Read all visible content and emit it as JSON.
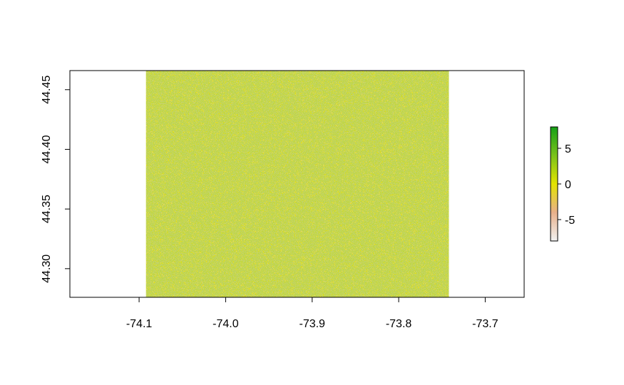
{
  "chart_data": {
    "type": "heatmap",
    "title": "",
    "xlabel": "",
    "ylabel": "",
    "xlim": [
      -74.18,
      -73.655
    ],
    "ylim": [
      44.276,
      44.466
    ],
    "x_ticks": [
      -74.1,
      -74.0,
      -73.9,
      -73.8,
      -73.7
    ],
    "x_tick_labels": [
      "-74.1",
      "-74.0",
      "-73.9",
      "-73.8",
      "-73.7"
    ],
    "y_ticks": [
      44.3,
      44.35,
      44.4,
      44.45
    ],
    "y_tick_labels": [
      "44.30",
      "44.35",
      "44.40",
      "44.45"
    ],
    "raster_extent": {
      "xmin": -74.092,
      "xmax": -73.742,
      "ymin": 44.276,
      "ymax": 44.466
    },
    "dominant_value": 0,
    "legend": {
      "placement": "right",
      "range": [
        -8,
        8
      ],
      "ticks": [
        5,
        0,
        -5
      ],
      "tick_labels": [
        "5",
        "0",
        "-5"
      ],
      "colors": [
        "#f2f2f2",
        "#e8b08a",
        "#e3e300",
        "#7ac21a",
        "#16a018"
      ]
    },
    "colors": {
      "fill": "#e1e200",
      "speckle_low": "#e2a87e",
      "speckle_high": "#3fa928"
    },
    "grid": false
  }
}
